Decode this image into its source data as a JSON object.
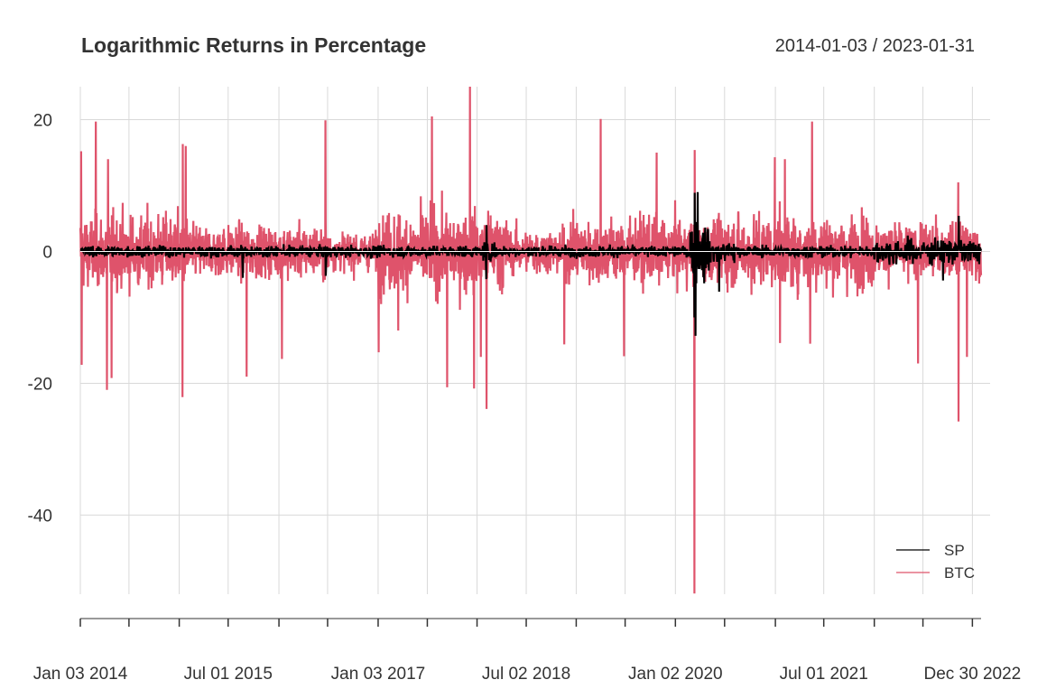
{
  "chart_data": {
    "type": "line",
    "title": "Logarithmic Returns in Percentage",
    "date_range_label": "2014-01-03 / 2023-01-31",
    "xlabel": "",
    "ylabel": "",
    "x_range": [
      "2014-01-03",
      "2023-01-31"
    ],
    "ylim": [
      -52,
      25
    ],
    "y_ticks": [
      20,
      0,
      -20,
      -40
    ],
    "y_tick_labels": [
      "20",
      "0",
      "-20",
      "-40"
    ],
    "x_tick_labels": [
      "Jan 03 2014",
      "Jul 01 2015",
      "Jan 03 2017",
      "Jul 02 2018",
      "Jan 02 2020",
      "Jul 01 2021",
      "Dec 30 2022"
    ],
    "x_tick_dates": [
      "2014-01-03",
      "2015-07-01",
      "2017-01-03",
      "2018-07-02",
      "2020-01-02",
      "2021-07-01",
      "2022-12-30"
    ],
    "x_minor_tick_dates": [
      "2014-07-01",
      "2015-01-02",
      "2016-01-04",
      "2016-07-01",
      "2017-07-03",
      "2018-01-02",
      "2019-01-02",
      "2019-07-01",
      "2020-07-01",
      "2021-01-04",
      "2022-01-03",
      "2022-07-01"
    ],
    "grid": true,
    "legend_position": "bottom-right",
    "series": [
      {
        "name": "SP",
        "color": "#000000",
        "notable_points": [
          {
            "x": "2020-03-16",
            "y": -12.8
          },
          {
            "x": "2020-03-24",
            "y": 9.0
          },
          {
            "x": "2020-03-13",
            "y": 8.9
          },
          {
            "x": "2020-03-12",
            "y": -10.0
          },
          {
            "x": "2018-02-05",
            "y": -4.2
          },
          {
            "x": "2018-02-06",
            "y": 4.0
          },
          {
            "x": "2015-08-24",
            "y": -4.0
          },
          {
            "x": "2020-06-11",
            "y": -6.1
          },
          {
            "x": "2022-09-13",
            "y": -4.4
          },
          {
            "x": "2022-11-10",
            "y": 5.4
          },
          {
            "x": "2016-06-24",
            "y": -3.7
          }
        ]
      },
      {
        "name": "BTC",
        "color": "#df536b",
        "notable_points": [
          {
            "x": "2014-01-06",
            "y": 15.2
          },
          {
            "x": "2014-01-08",
            "y": -17.2
          },
          {
            "x": "2014-03-01",
            "y": 19.7
          },
          {
            "x": "2014-04-11",
            "y": -21.0
          },
          {
            "x": "2014-04-28",
            "y": -19.2
          },
          {
            "x": "2014-04-15",
            "y": 14.0
          },
          {
            "x": "2015-01-14",
            "y": -22.1
          },
          {
            "x": "2015-01-15",
            "y": 16.3
          },
          {
            "x": "2015-01-26",
            "y": 16.0
          },
          {
            "x": "2015-09-07",
            "y": -19.0
          },
          {
            "x": "2016-01-15",
            "y": -16.3
          },
          {
            "x": "2016-06-23",
            "y": 19.9
          },
          {
            "x": "2017-01-05",
            "y": -15.3
          },
          {
            "x": "2017-03-18",
            "y": -12.0
          },
          {
            "x": "2017-07-20",
            "y": 20.5
          },
          {
            "x": "2017-09-14",
            "y": -20.6
          },
          {
            "x": "2017-12-07",
            "y": 25.0
          },
          {
            "x": "2017-12-22",
            "y": -20.8
          },
          {
            "x": "2018-01-16",
            "y": -16.0
          },
          {
            "x": "2018-02-06",
            "y": -23.9
          },
          {
            "x": "2018-11-19",
            "y": -14.1
          },
          {
            "x": "2019-04-02",
            "y": 20.1
          },
          {
            "x": "2019-06-27",
            "y": -15.9
          },
          {
            "x": "2019-10-25",
            "y": 15.0
          },
          {
            "x": "2020-03-12",
            "y": -51.9
          },
          {
            "x": "2020-03-13",
            "y": 15.4
          },
          {
            "x": "2021-01-02",
            "y": 14.3
          },
          {
            "x": "2021-01-21",
            "y": -13.9
          },
          {
            "x": "2021-02-08",
            "y": 14.0
          },
          {
            "x": "2021-05-19",
            "y": 19.7
          },
          {
            "x": "2021-05-12",
            "y": -14.0
          },
          {
            "x": "2022-06-13",
            "y": -17.0
          },
          {
            "x": "2022-11-09",
            "y": -25.8
          },
          {
            "x": "2022-11-08",
            "y": 10.5
          },
          {
            "x": "2022-12-10",
            "y": -16.0
          }
        ]
      }
    ]
  }
}
